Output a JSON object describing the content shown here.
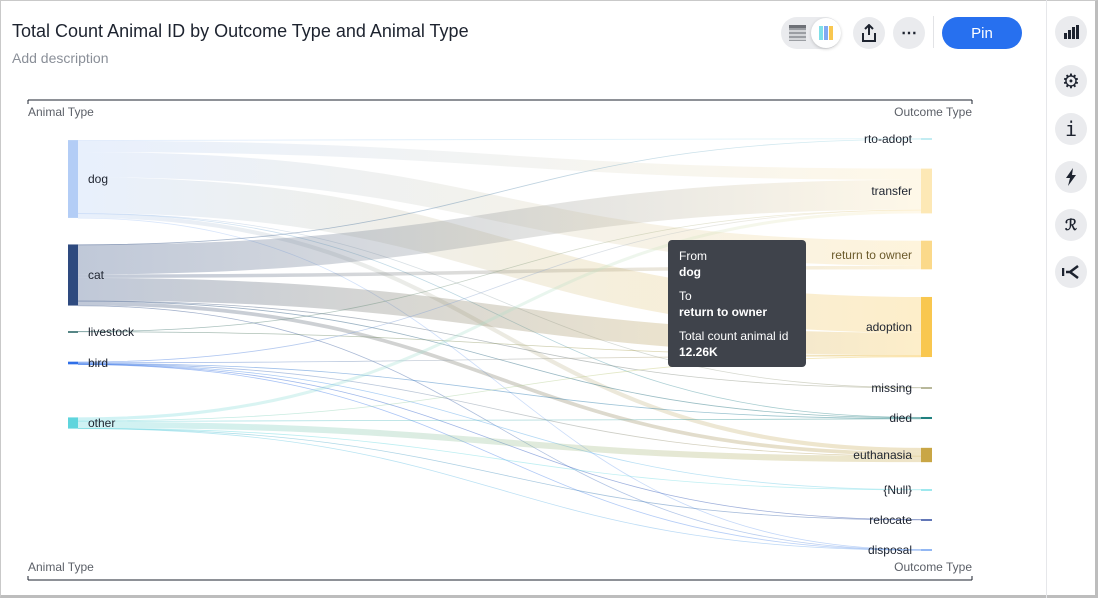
{
  "header": {
    "title": "Total Count Animal ID by Outcome Type and Animal Type",
    "description_placeholder": "Add description",
    "pin_label": "Pin",
    "more_label": "⋯"
  },
  "toolbar_icons": [
    "table-view-icon",
    "chart-view-icon",
    "share-icon",
    "more-icon"
  ],
  "side_rail": [
    "chart-type-icon",
    "settings-icon",
    "info-icon",
    "spotiq-lightning-icon",
    "r-analysis-icon",
    "sankey-icon"
  ],
  "tooltip": {
    "from_label": "From",
    "from_value": "dog",
    "to_label": "To",
    "to_value": "return to owner",
    "measure_label": "Total count animal id",
    "measure_value": "12.26K"
  },
  "colors": {
    "accent": "#2770ef",
    "tooltip_bg": "#3f434b"
  },
  "chart_data": {
    "type": "sankey",
    "source_axis_label": "Animal Type",
    "target_axis_label": "Outcome Type",
    "measure": "Total count animal id",
    "unit": "K",
    "sources": [
      {
        "name": "dog",
        "color": "#b3cdf6"
      },
      {
        "name": "cat",
        "color": "#2e4a7f"
      },
      {
        "name": "livestock",
        "color": "#1f5f5f"
      },
      {
        "name": "bird",
        "color": "#2f6fe8"
      },
      {
        "name": "other",
        "color": "#5fd5dd"
      }
    ],
    "targets": [
      {
        "name": "rto-adopt",
        "color": "#aee6ee"
      },
      {
        "name": "transfer",
        "color": "#fde8b5"
      },
      {
        "name": "return to owner",
        "color": "#fbd98a"
      },
      {
        "name": "adoption",
        "color": "#f9c74f"
      },
      {
        "name": "missing",
        "color": "#a0a07a"
      },
      {
        "name": "died",
        "color": "#20807f"
      },
      {
        "name": "euthanasia",
        "color": "#c9a645"
      },
      {
        "name": "{Null}",
        "color": "#7fe0e8"
      },
      {
        "name": "relocate",
        "color": "#2e4a9f"
      },
      {
        "name": "disposal",
        "color": "#6f9fef"
      }
    ],
    "links": [
      [
        "dog",
        "rto-adopt",
        0.3
      ],
      [
        "dog",
        "transfer",
        5.5
      ],
      [
        "dog",
        "return to owner",
        12.26
      ],
      [
        "dog",
        "adoption",
        17.5
      ],
      [
        "dog",
        "missing",
        0.1
      ],
      [
        "dog",
        "died",
        0.2
      ],
      [
        "dog",
        "euthanasia",
        2.0
      ],
      [
        "dog",
        "disposal",
        0.1
      ],
      [
        "cat",
        "rto-adopt",
        0.1
      ],
      [
        "cat",
        "transfer",
        14.5
      ],
      [
        "cat",
        "return to owner",
        1.7
      ],
      [
        "cat",
        "adoption",
        11.0
      ],
      [
        "cat",
        "missing",
        0.2
      ],
      [
        "cat",
        "died",
        0.4
      ],
      [
        "cat",
        "euthanasia",
        1.8
      ],
      [
        "cat",
        "disposal",
        0.1
      ],
      [
        "livestock",
        "transfer",
        0.05
      ],
      [
        "livestock",
        "adoption",
        0.1
      ],
      [
        "bird",
        "transfer",
        0.3
      ],
      [
        "bird",
        "adoption",
        0.4
      ],
      [
        "bird",
        "died",
        0.1
      ],
      [
        "bird",
        "euthanasia",
        0.2
      ],
      [
        "bird",
        "{Null}",
        0.1
      ],
      [
        "bird",
        "relocate",
        0.1
      ],
      [
        "bird",
        "disposal",
        0.1
      ],
      [
        "other",
        "transfer",
        1.5
      ],
      [
        "other",
        "adoption",
        0.3
      ],
      [
        "other",
        "died",
        0.3
      ],
      [
        "other",
        "euthanasia",
        3.0
      ],
      [
        "other",
        "{Null}",
        0.1
      ],
      [
        "other",
        "relocate",
        0.05
      ],
      [
        "other",
        "disposal",
        0.2
      ]
    ]
  }
}
